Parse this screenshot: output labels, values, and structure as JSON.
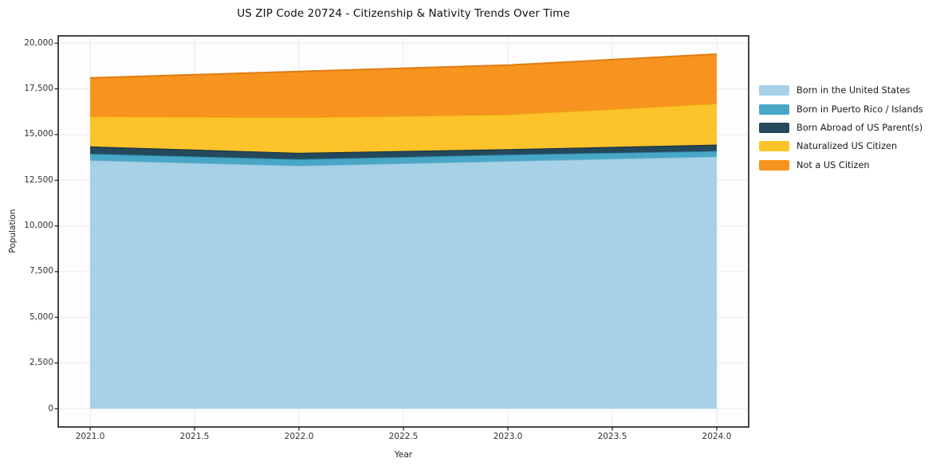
{
  "chart_data": {
    "type": "area",
    "stacked": true,
    "title": "US ZIP Code 20724 - Citizenship & Nativity Trends Over Time",
    "xlabel": "Year",
    "ylabel": "Population",
    "x": [
      2021,
      2022,
      2023,
      2024
    ],
    "series": [
      {
        "name": "Born in the United States",
        "color": "#a6d1e6",
        "edge": "#79b6d2",
        "values": [
          13600,
          13300,
          13550,
          13800
        ]
      },
      {
        "name": "Born in Puerto Rico / Islands",
        "color": "#48a7c6",
        "edge": "#2e8cab",
        "values": [
          350,
          350,
          350,
          300
        ]
      },
      {
        "name": "Born Abroad of US Parent(s)",
        "color": "#24495c",
        "edge": "#132e3c",
        "values": [
          400,
          350,
          300,
          350
        ]
      },
      {
        "name": "Naturalized US Citizen",
        "color": "#fcc32b",
        "edge": "#eda211",
        "values": [
          1650,
          1950,
          1900,
          2250
        ]
      },
      {
        "name": "Not a US Citizen",
        "color": "#f7941f",
        "edge": "#df7d13",
        "values": [
          2100,
          2500,
          2700,
          2700
        ]
      }
    ],
    "totals": [
      18100,
      18450,
      18800,
      19400
    ],
    "xlim": [
      2020.847,
      2024.153
    ],
    "ylim": [
      -1000,
      20400
    ],
    "xticks": {
      "values": [
        2021.0,
        2021.5,
        2022.0,
        2022.5,
        2023.0,
        2023.5,
        2024.0
      ],
      "labels": [
        "2021.0",
        "2021.5",
        "2022.0",
        "2022.5",
        "2023.0",
        "2023.5",
        "2024.0"
      ]
    },
    "yticks": {
      "values": [
        0,
        2500,
        5000,
        7500,
        10000,
        12500,
        15000,
        17500,
        20000
      ],
      "labels": [
        "0",
        "2,500",
        "5,000",
        "7,500",
        "10,000",
        "12,500",
        "15,000",
        "17,500",
        "20,000"
      ]
    },
    "grid": true,
    "legend_position": "right",
    "colors": {
      "plot_background": "#fdfdfe",
      "grid": "#e7eaed",
      "spine": "#1a1a1a",
      "tick_text": "#333333"
    }
  }
}
